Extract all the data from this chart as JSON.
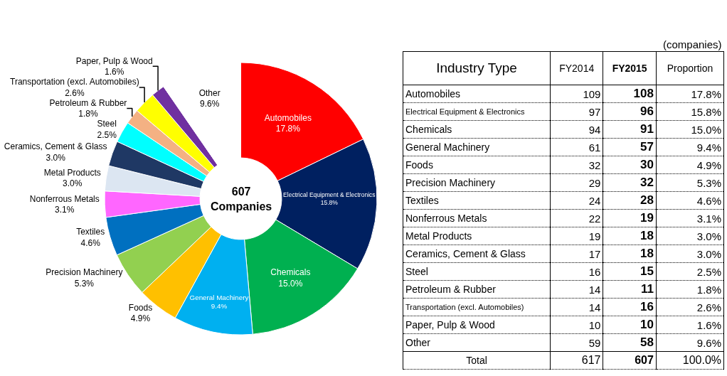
{
  "chart_data": [
    {
      "type": "donut",
      "categories": [
        "Automobiles",
        "Electrical Equipment & Electronics",
        "Chemicals",
        "General Machinery",
        "Foods",
        "Precision Machinery",
        "Textiles",
        "Nonferrous Metals",
        "Metal Products",
        "Ceramics, Cement & Glass",
        "Steel",
        "Petroleum & Rubber",
        "Transportation (excl. Automobiles)",
        "Paper, Pulp & Wood",
        "Other"
      ],
      "values": [
        17.8,
        15.8,
        15.0,
        9.4,
        4.9,
        5.3,
        4.6,
        3.1,
        3.0,
        3.0,
        2.5,
        1.8,
        2.6,
        1.6,
        9.6
      ],
      "value_labels": [
        "17.8%",
        "15.8%",
        "15.0%",
        "9.4%",
        "4.9%",
        "5.3%",
        "4.6%",
        "3.1%",
        "3.0%",
        "3.0%",
        "2.5%",
        "1.8%",
        "2.6%",
        "1.6%",
        "9.6%"
      ],
      "colors": [
        "#ff0000",
        "#002060",
        "#00b050",
        "#00b0f0",
        "#ffc000",
        "#92d050",
        "#0070c0",
        "#ff66ff",
        "#dce6f2",
        "#1f3864",
        "#00ffff",
        "#f4b183",
        "#ffff00",
        "#7030a0",
        "#ffffff"
      ],
      "annotations": [
        "607 Companies"
      ],
      "legend": false
    },
    {
      "type": "other",
      "xlabel": "Industry Type",
      "categories": [
        "Automobiles",
        "Electrical Equipment & Electronics",
        "Chemicals",
        "General Machinery",
        "Foods",
        "Precision Machinery",
        "Textiles",
        "Nonferrous Metals",
        "Metal Products",
        "Ceramics, Cement & Glass",
        "Steel",
        "Petroleum & Rubber",
        "Transportation (excl. Automobiles)",
        "Paper, Pulp & Wood",
        "Other"
      ],
      "series": [
        {
          "name": "FY2014",
          "values": [
            109,
            97,
            94,
            61,
            32,
            29,
            24,
            22,
            19,
            17,
            16,
            14,
            14,
            10,
            59
          ]
        },
        {
          "name": "FY2015",
          "values": [
            108,
            96,
            91,
            57,
            30,
            32,
            28,
            19,
            18,
            18,
            15,
            11,
            16,
            10,
            58
          ]
        },
        {
          "name": "Proportion",
          "values": [
            17.8,
            15.8,
            15.0,
            9.4,
            4.9,
            5.3,
            4.6,
            3.1,
            3.0,
            3.0,
            2.5,
            1.8,
            2.6,
            1.6,
            9.6
          ],
          "value_labels": [
            "17.8%",
            "15.8%",
            "15.0%",
            "9.4%",
            "4.9%",
            "5.3%",
            "4.6%",
            "3.1%",
            "3.0%",
            "3.0%",
            "2.5%",
            "1.8%",
            "2.6%",
            "1.6%",
            "9.6%"
          ]
        }
      ],
      "totals": [
        "617",
        "607",
        "100.0%"
      ],
      "data_labels": true,
      "annotations": [
        "(companies)",
        "Total"
      ]
    }
  ]
}
